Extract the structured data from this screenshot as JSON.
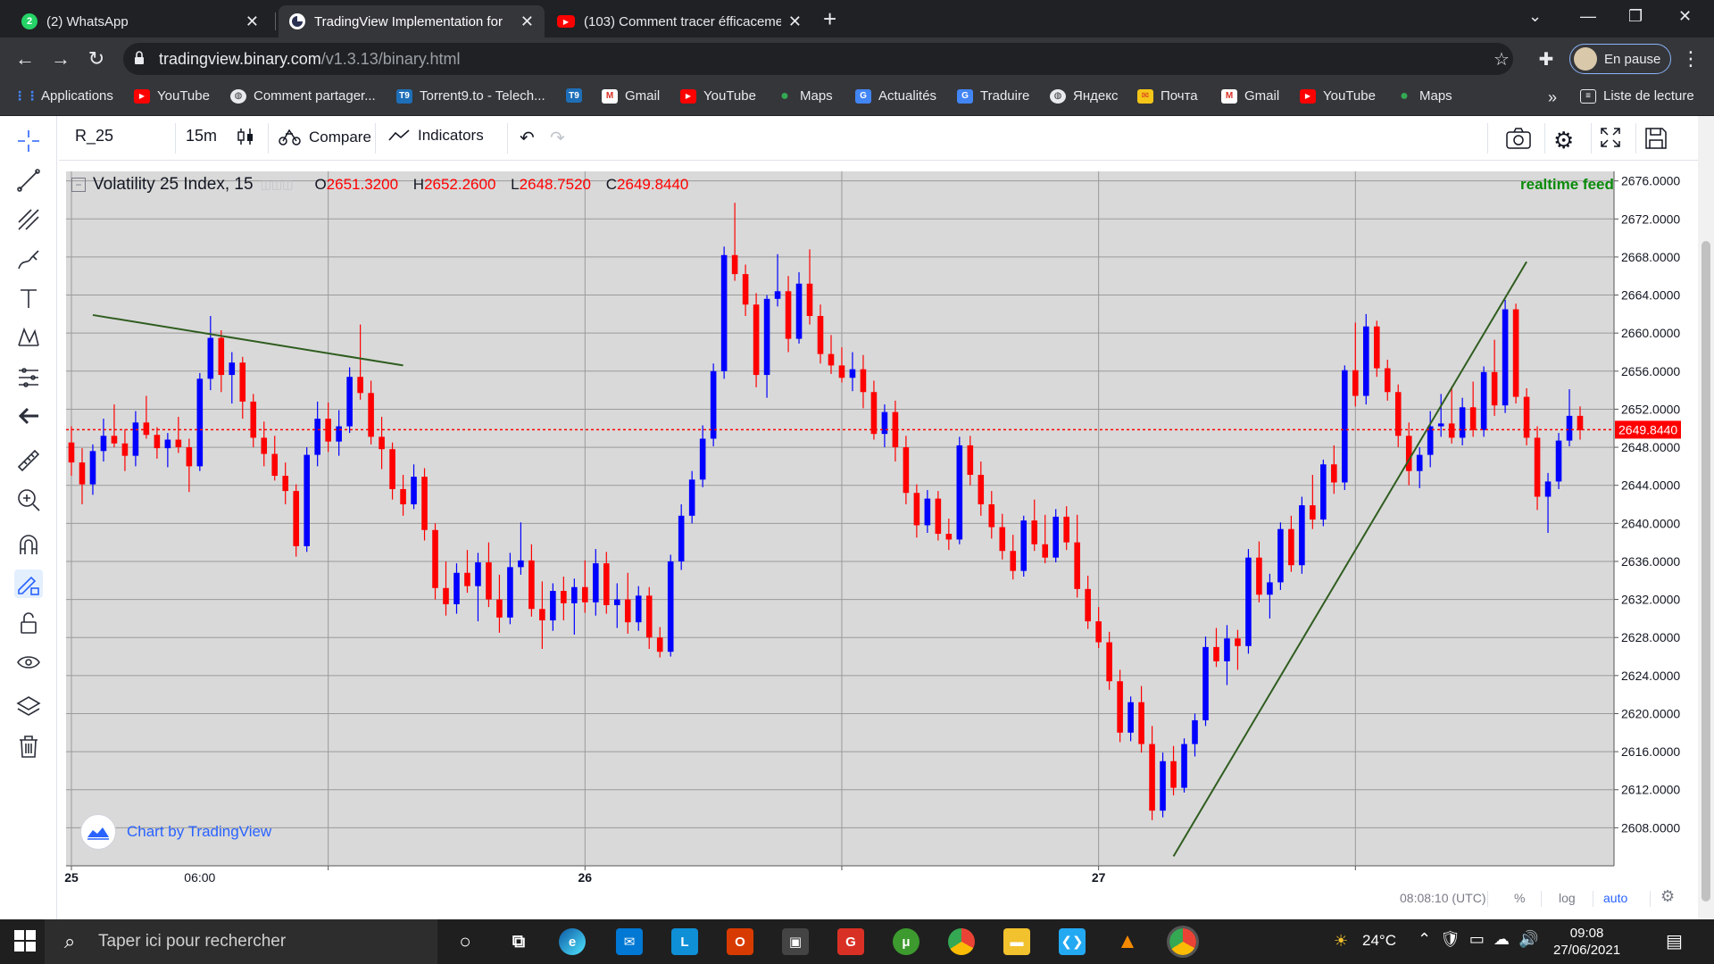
{
  "browser": {
    "tabs": [
      {
        "title": "(2) WhatsApp",
        "icon": "whatsapp-icon",
        "color": "#25d366",
        "badge": "2",
        "active": false
      },
      {
        "title": "TradingView Implementation for",
        "icon": "binary-icon",
        "color": "#ffffff",
        "badge": "",
        "active": true
      },
      {
        "title": "(103) Comment tracer éfficaceme",
        "icon": "youtube-icon",
        "color": "#ff0000",
        "badge": "",
        "active": false
      }
    ],
    "new_tab": "+",
    "url_host": "tradingview.binary.com",
    "url_path": "/v1.3.13/binary.html",
    "profile_label": "En pause",
    "bookmarks": [
      {
        "label": "Applications",
        "icon": "apps-grid-icon",
        "color": "#4285f4",
        "glyph": "⋮⋮"
      },
      {
        "label": "YouTube",
        "icon": "youtube-icon",
        "color": "#ff0000",
        "glyph": "▶"
      },
      {
        "label": "Comment partager...",
        "icon": "globe-icon",
        "color": "#5f6368",
        "glyph": "◍"
      },
      {
        "label": "Torrent9.to - Telech...",
        "icon": "torrent9-icon",
        "color": "#1e6fb8",
        "glyph": "T9"
      },
      {
        "label": "",
        "icon": "torrent9-icon",
        "color": "#1e6fb8",
        "glyph": "T9"
      },
      {
        "label": "Gmail",
        "icon": "gmail-icon",
        "color": "#d93025",
        "glyph": "M"
      },
      {
        "label": "YouTube",
        "icon": "youtube-icon",
        "color": "#ff0000",
        "glyph": "▶"
      },
      {
        "label": "Maps",
        "icon": "maps-icon",
        "color": "#34a853",
        "glyph": "●"
      },
      {
        "label": "Actualités",
        "icon": "news-icon",
        "color": "#4285f4",
        "glyph": "G"
      },
      {
        "label": "Traduire",
        "icon": "translate-icon",
        "color": "#4285f4",
        "glyph": "G"
      },
      {
        "label": "Яндекс",
        "icon": "globe-icon",
        "color": "#5f6368",
        "glyph": "◍"
      },
      {
        "label": "Почта",
        "icon": "yandex-mail-icon",
        "color": "#f5c518",
        "glyph": "✉"
      },
      {
        "label": "Gmail",
        "icon": "gmail-icon",
        "color": "#d93025",
        "glyph": "M"
      },
      {
        "label": "YouTube",
        "icon": "youtube-icon",
        "color": "#ff0000",
        "glyph": "▶"
      },
      {
        "label": "Maps",
        "icon": "maps-icon",
        "color": "#34a853",
        "glyph": "●"
      }
    ],
    "bookmarks_more": "»",
    "reading_list": "Liste de lecture"
  },
  "toolbar": {
    "symbol": "R_25",
    "interval": "15m",
    "compare": "Compare",
    "indicators": "Indicators"
  },
  "legend": {
    "title": "Volatility 25 Index, 15",
    "o_label": "O",
    "o": "2651.3200",
    "h_label": "H",
    "h": "2652.2600",
    "l_label": "L",
    "l": "2648.7520",
    "c_label": "C",
    "c": "2649.8440",
    "realtime": "realtime feed"
  },
  "watermark": "Chart by TradingView",
  "bottom": {
    "time": "08:08:10 (UTC)",
    "percent": "%",
    "log": "log",
    "auto": "auto"
  },
  "chart_data": {
    "type": "candlestick",
    "title": "Volatility 25 Index, 15",
    "y_ticks": [
      "2676.0000",
      "2672.0000",
      "2668.0000",
      "2664.0000",
      "2660.0000",
      "2656.0000",
      "2652.0000",
      "2648.0000",
      "2644.0000",
      "2640.0000",
      "2636.0000",
      "2632.0000",
      "2628.0000",
      "2624.0000",
      "2620.0000",
      "2616.0000",
      "2612.0000",
      "2608.0000"
    ],
    "x_ticks": [
      "25",
      "06:00",
      "26",
      "27"
    ],
    "ylim": [
      2604,
      2677
    ],
    "last_price": 2649.844,
    "last_price_label": "2649.8440",
    "colors": {
      "up": "#0000ff",
      "down": "#ff0000",
      "trendline": "#2f5d1f",
      "price_line": "#ff0000"
    },
    "candles_ohlc": [
      [
        2648.5,
        2650.2,
        2645.0,
        2646.4
      ],
      [
        2646.4,
        2647.9,
        2642.0,
        2644.1
      ],
      [
        2644.1,
        2648.3,
        2643.0,
        2647.6
      ],
      [
        2647.6,
        2651.0,
        2646.5,
        2649.2
      ],
      [
        2649.2,
        2652.5,
        2648.0,
        2648.4
      ],
      [
        2648.4,
        2649.9,
        2645.5,
        2647.1
      ],
      [
        2647.1,
        2651.8,
        2646.0,
        2650.6
      ],
      [
        2650.6,
        2653.4,
        2648.9,
        2649.3
      ],
      [
        2649.3,
        2650.1,
        2646.8,
        2647.9
      ],
      [
        2647.9,
        2649.5,
        2645.9,
        2648.8
      ],
      [
        2648.8,
        2651.2,
        2647.4,
        2648.0
      ],
      [
        2648.0,
        2648.9,
        2643.3,
        2646.0
      ],
      [
        2646.0,
        2655.8,
        2645.5,
        2655.2
      ],
      [
        2655.2,
        2661.8,
        2654.0,
        2659.5
      ],
      [
        2659.5,
        2660.3,
        2653.8,
        2655.6
      ],
      [
        2655.6,
        2658.0,
        2652.6,
        2656.9
      ],
      [
        2656.9,
        2657.5,
        2651.0,
        2652.8
      ],
      [
        2652.8,
        2653.6,
        2648.0,
        2649.0
      ],
      [
        2649.0,
        2650.7,
        2646.0,
        2647.3
      ],
      [
        2647.3,
        2649.2,
        2644.5,
        2645.0
      ],
      [
        2645.0,
        2646.4,
        2642.0,
        2643.4
      ],
      [
        2643.4,
        2644.1,
        2636.5,
        2637.6
      ],
      [
        2637.6,
        2648.0,
        2637.0,
        2647.2
      ],
      [
        2647.2,
        2652.8,
        2646.0,
        2651.0
      ],
      [
        2651.0,
        2652.7,
        2647.5,
        2648.6
      ],
      [
        2648.6,
        2651.9,
        2647.1,
        2650.2
      ],
      [
        2650.2,
        2656.4,
        2649.5,
        2655.4
      ],
      [
        2655.4,
        2660.9,
        2653.0,
        2653.7
      ],
      [
        2653.7,
        2655.0,
        2648.3,
        2649.1
      ],
      [
        2649.1,
        2651.2,
        2645.7,
        2647.8
      ],
      [
        2647.8,
        2648.5,
        2642.5,
        2643.6
      ],
      [
        2643.6,
        2645.1,
        2640.8,
        2642.0
      ],
      [
        2642.0,
        2646.2,
        2641.5,
        2644.9
      ],
      [
        2644.9,
        2645.8,
        2638.2,
        2639.3
      ],
      [
        2639.3,
        2640.0,
        2632.0,
        2633.2
      ],
      [
        2633.2,
        2636.0,
        2630.3,
        2631.5
      ],
      [
        2631.5,
        2635.8,
        2630.5,
        2634.8
      ],
      [
        2634.8,
        2637.2,
        2632.7,
        2633.4
      ],
      [
        2633.4,
        2636.9,
        2629.7,
        2635.9
      ],
      [
        2635.9,
        2638.0,
        2631.2,
        2632.0
      ],
      [
        2632.0,
        2634.6,
        2628.5,
        2630.1
      ],
      [
        2630.1,
        2636.9,
        2629.4,
        2635.4
      ],
      [
        2635.4,
        2640.1,
        2634.6,
        2636.1
      ],
      [
        2636.1,
        2637.8,
        2630.2,
        2631.0
      ],
      [
        2631.0,
        2633.9,
        2626.8,
        2629.8
      ],
      [
        2629.8,
        2633.7,
        2628.7,
        2632.9
      ],
      [
        2632.9,
        2634.4,
        2629.8,
        2631.6
      ],
      [
        2631.6,
        2634.2,
        2628.3,
        2633.3
      ],
      [
        2633.3,
        2636.1,
        2630.6,
        2631.7
      ],
      [
        2631.7,
        2637.3,
        2630.3,
        2635.8
      ],
      [
        2635.8,
        2637.0,
        2630.5,
        2631.4
      ],
      [
        2631.4,
        2633.7,
        2629.0,
        2632.0
      ],
      [
        2632.0,
        2634.8,
        2628.4,
        2629.6
      ],
      [
        2629.6,
        2633.4,
        2628.7,
        2632.4
      ],
      [
        2632.4,
        2633.3,
        2626.8,
        2628.0
      ],
      [
        2628.0,
        2629.1,
        2625.9,
        2626.5
      ],
      [
        2626.5,
        2636.7,
        2626.0,
        2636.0
      ],
      [
        2636.0,
        2642.0,
        2635.1,
        2640.8
      ],
      [
        2640.8,
        2645.5,
        2640.0,
        2644.6
      ],
      [
        2644.6,
        2650.3,
        2643.8,
        2648.9
      ],
      [
        2648.9,
        2656.8,
        2648.1,
        2656.0
      ],
      [
        2656.0,
        2669.1,
        2655.2,
        2668.2
      ],
      [
        2668.2,
        2673.7,
        2665.5,
        2666.2
      ],
      [
        2666.2,
        2667.2,
        2661.8,
        2663.0
      ],
      [
        2663.0,
        2664.2,
        2654.3,
        2655.6
      ],
      [
        2655.6,
        2664.0,
        2653.2,
        2663.6
      ],
      [
        2663.6,
        2668.3,
        2662.8,
        2664.4
      ],
      [
        2664.4,
        2666.0,
        2658.0,
        2659.4
      ],
      [
        2659.4,
        2666.4,
        2658.9,
        2665.2
      ],
      [
        2665.2,
        2668.8,
        2660.9,
        2661.8
      ],
      [
        2661.8,
        2663.0,
        2656.8,
        2657.8
      ],
      [
        2657.8,
        2659.8,
        2655.7,
        2656.6
      ],
      [
        2656.6,
        2658.5,
        2654.8,
        2655.3
      ],
      [
        2655.3,
        2658.0,
        2653.9,
        2656.2
      ],
      [
        2656.2,
        2657.7,
        2652.1,
        2653.8
      ],
      [
        2653.8,
        2655.0,
        2648.8,
        2649.4
      ],
      [
        2649.4,
        2652.5,
        2648.0,
        2651.7
      ],
      [
        2651.7,
        2652.9,
        2646.5,
        2648.0
      ],
      [
        2648.0,
        2649.2,
        2642.0,
        2643.2
      ],
      [
        2643.2,
        2644.1,
        2638.5,
        2639.8
      ],
      [
        2639.8,
        2643.5,
        2639.0,
        2642.6
      ],
      [
        2642.6,
        2643.4,
        2638.2,
        2638.9
      ],
      [
        2638.9,
        2640.5,
        2637.2,
        2638.3
      ],
      [
        2638.3,
        2649.1,
        2637.8,
        2648.2
      ],
      [
        2648.2,
        2649.2,
        2644.0,
        2645.1
      ],
      [
        2645.1,
        2646.5,
        2640.8,
        2642.0
      ],
      [
        2642.0,
        2643.4,
        2638.4,
        2639.6
      ],
      [
        2639.6,
        2641.0,
        2636.2,
        2637.1
      ],
      [
        2637.1,
        2638.8,
        2634.1,
        2635.0
      ],
      [
        2635.0,
        2640.8,
        2634.4,
        2640.3
      ],
      [
        2640.3,
        2642.5,
        2637.1,
        2637.8
      ],
      [
        2637.8,
        2640.9,
        2635.8,
        2636.4
      ],
      [
        2636.4,
        2641.5,
        2635.9,
        2640.7
      ],
      [
        2640.7,
        2641.8,
        2637.2,
        2638.0
      ],
      [
        2638.0,
        2640.9,
        2632.2,
        2633.1
      ],
      [
        2633.1,
        2634.5,
        2628.9,
        2629.7
      ],
      [
        2629.7,
        2631.2,
        2626.9,
        2627.5
      ],
      [
        2627.5,
        2628.6,
        2622.5,
        2623.4
      ],
      [
        2623.4,
        2624.6,
        2617.0,
        2618.0
      ],
      [
        2618.0,
        2621.8,
        2617.1,
        2621.2
      ],
      [
        2621.2,
        2622.9,
        2615.9,
        2616.8
      ],
      [
        2616.8,
        2618.7,
        2608.8,
        2609.8
      ],
      [
        2609.8,
        2615.9,
        2609.1,
        2615.0
      ],
      [
        2615.0,
        2616.6,
        2611.4,
        2612.2
      ],
      [
        2612.2,
        2617.4,
        2611.7,
        2616.8
      ],
      [
        2616.8,
        2620.0,
        2615.5,
        2619.3
      ],
      [
        2619.3,
        2628.1,
        2618.7,
        2627.0
      ],
      [
        2627.0,
        2629.0,
        2624.9,
        2625.5
      ],
      [
        2625.5,
        2629.3,
        2623.0,
        2627.9
      ],
      [
        2627.9,
        2628.8,
        2624.6,
        2627.1
      ],
      [
        2627.1,
        2637.3,
        2626.3,
        2636.4
      ],
      [
        2636.4,
        2638.1,
        2631.7,
        2632.5
      ],
      [
        2632.5,
        2634.7,
        2630.0,
        2633.8
      ],
      [
        2633.8,
        2640.1,
        2633.0,
        2639.4
      ],
      [
        2639.4,
        2640.8,
        2634.9,
        2635.6
      ],
      [
        2635.6,
        2642.8,
        2634.7,
        2641.9
      ],
      [
        2641.9,
        2645.1,
        2639.4,
        2640.4
      ],
      [
        2640.4,
        2646.7,
        2639.7,
        2646.2
      ],
      [
        2646.2,
        2648.2,
        2643.1,
        2644.3
      ],
      [
        2644.3,
        2656.6,
        2643.5,
        2656.1
      ],
      [
        2656.1,
        2661.1,
        2652.3,
        2653.4
      ],
      [
        2653.4,
        2662.0,
        2652.5,
        2660.7
      ],
      [
        2660.7,
        2661.3,
        2655.4,
        2656.3
      ],
      [
        2656.3,
        2657.2,
        2652.9,
        2653.8
      ],
      [
        2653.8,
        2654.6,
        2648.0,
        2649.2
      ],
      [
        2649.2,
        2650.6,
        2644.0,
        2645.5
      ],
      [
        2645.5,
        2648.0,
        2643.7,
        2647.2
      ],
      [
        2647.2,
        2651.8,
        2645.9,
        2650.2
      ],
      [
        2650.2,
        2653.6,
        2649.1,
        2650.5
      ],
      [
        2650.5,
        2654.4,
        2648.4,
        2649.0
      ],
      [
        2649.0,
        2653.2,
        2648.2,
        2652.2
      ],
      [
        2652.2,
        2654.9,
        2649.1,
        2649.8
      ],
      [
        2649.8,
        2656.5,
        2649.1,
        2655.9
      ],
      [
        2655.9,
        2659.3,
        2651.3,
        2652.4
      ],
      [
        2652.4,
        2663.5,
        2651.6,
        2662.5
      ],
      [
        2662.5,
        2663.1,
        2652.6,
        2653.3
      ],
      [
        2653.3,
        2654.2,
        2648.2,
        2649.0
      ],
      [
        2649.0,
        2650.2,
        2641.4,
        2642.8
      ],
      [
        2642.8,
        2645.3,
        2639.0,
        2644.4
      ],
      [
        2644.4,
        2649.5,
        2643.6,
        2648.7
      ],
      [
        2648.7,
        2654.1,
        2648.1,
        2651.3
      ],
      [
        2651.3,
        2652.3,
        2648.8,
        2649.8
      ]
    ]
  }
}
